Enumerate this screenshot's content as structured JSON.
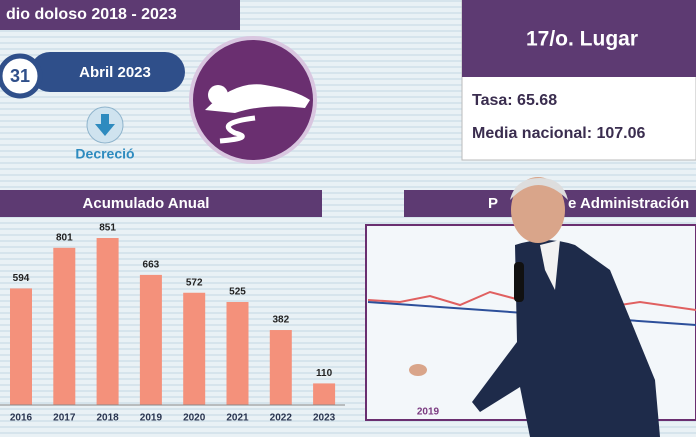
{
  "header": {
    "title": "dio doloso 2018 - 2023",
    "day": "31",
    "month": "Abril 2023",
    "trend": "Decreció"
  },
  "ranking": {
    "place": "17/o. Lugar",
    "rate": "Tasa: 65.68",
    "national": "Media nacional: 107.06"
  },
  "right_panel": {
    "title_left": "P",
    "title_right": "e Administración",
    "year": "2019"
  },
  "chart_data": {
    "type": "bar",
    "title": "Acumulado Anual",
    "categories": [
      "2016",
      "2017",
      "2018",
      "2019",
      "2020",
      "2021",
      "2022",
      "2023"
    ],
    "values": [
      594,
      801,
      851,
      663,
      572,
      525,
      382,
      110
    ],
    "color": "#f4917b"
  }
}
